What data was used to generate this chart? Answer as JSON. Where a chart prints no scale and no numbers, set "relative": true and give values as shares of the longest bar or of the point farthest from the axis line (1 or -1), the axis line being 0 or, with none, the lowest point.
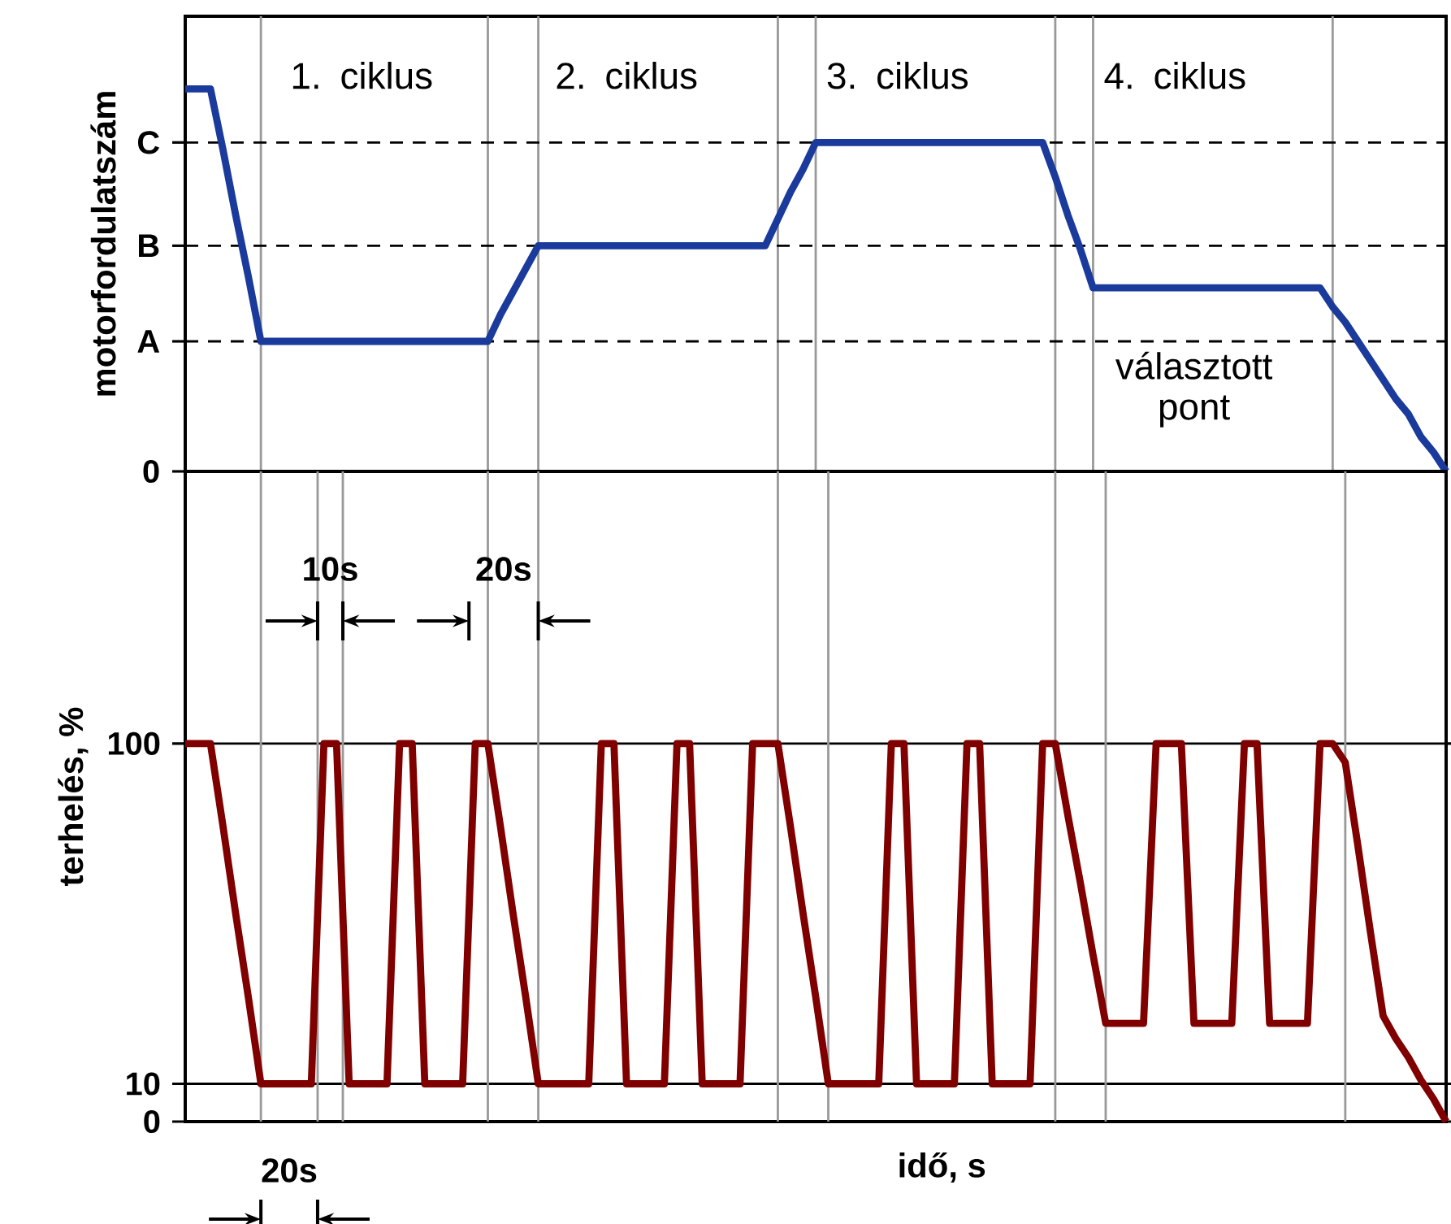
{
  "chart_data": [
    {
      "type": "line",
      "ylabel": "motorfordulatszám",
      "marker": "none",
      "relative": true,
      "grid": "x",
      "categories": [
        null,
        null,
        null,
        null,
        null,
        null,
        null,
        null,
        null,
        null,
        null,
        null,
        null,
        null,
        null,
        null,
        null,
        null,
        null,
        null,
        null,
        null,
        null,
        null,
        null,
        null,
        null,
        null,
        null,
        null,
        null,
        null,
        null,
        null,
        null,
        null,
        null,
        null,
        null,
        null,
        null,
        null,
        null,
        null,
        null,
        null,
        null,
        null,
        null,
        null,
        null,
        null,
        null,
        null,
        null,
        null,
        null,
        null,
        null,
        null,
        null,
        null,
        null,
        null,
        null,
        null,
        null,
        null,
        null,
        null,
        null,
        null,
        null,
        null,
        null,
        null,
        null,
        null,
        null,
        null,
        null,
        null,
        null,
        null,
        null,
        null,
        null,
        null,
        null,
        null,
        null,
        null,
        null,
        null,
        null,
        null,
        null,
        null,
        null,
        null,
        null
      ],
      "series": [
        {
          "color": "#1a3a9c",
          "values": [
            1,
            1,
            1,
            0.84,
            0.67,
            0.51,
            0.34,
            0.34,
            0.34,
            0.34,
            0.34,
            0.34,
            0.34,
            0.34,
            0.34,
            0.34,
            0.34,
            0.34,
            0.34,
            0.34,
            0.34,
            0.34,
            0.34,
            0.34,
            0.34,
            0.41,
            0.47,
            0.53,
            0.59,
            0.59,
            0.59,
            0.59,
            0.59,
            0.59,
            0.59,
            0.59,
            0.59,
            0.59,
            0.59,
            0.59,
            0.59,
            0.59,
            0.59,
            0.59,
            0.59,
            0.59,
            0.59,
            0.66,
            0.73,
            0.79,
            0.86,
            0.86,
            0.86,
            0.86,
            0.86,
            0.86,
            0.86,
            0.86,
            0.86,
            0.86,
            0.86,
            0.86,
            0.86,
            0.86,
            0.86,
            0.86,
            0.86,
            0.86,
            0.86,
            0.77,
            0.67,
            0.58,
            0.48,
            0.48,
            0.48,
            0.48,
            0.48,
            0.48,
            0.48,
            0.48,
            0.48,
            0.48,
            0.48,
            0.48,
            0.48,
            0.48,
            0.48,
            0.48,
            0.48,
            0.48,
            0.48,
            0.43,
            0.39,
            0.34,
            0.29,
            0.24,
            0.19,
            0.15,
            0.09,
            0.05,
            0
          ]
        }
      ],
      "ref_lines": [
        {
          "axis": "y",
          "value": 0,
          "label": "0",
          "color": "#000000"
        },
        {
          "axis": "y",
          "value": 0.34,
          "label": "A",
          "color": "#000000",
          "line_style": "dashed"
        },
        {
          "axis": "y",
          "value": 0.59,
          "label": "B",
          "color": "#000000",
          "line_style": "dashed"
        },
        {
          "axis": "y",
          "value": 0.86,
          "label": "C",
          "color": "#000000",
          "line_style": "dashed"
        }
      ],
      "annotations": [
        "1. ciklus",
        "2. ciklus",
        "3. ciklus",
        "4. ciklus",
        "választott pont"
      ]
    },
    {
      "type": "line",
      "ylabel": "terhelés, %",
      "xlabel": "idő, s",
      "marker": "none",
      "grid": true,
      "categories": [
        null,
        null,
        null,
        null,
        null,
        null,
        null,
        null,
        null,
        null,
        null,
        null,
        null,
        null,
        null,
        null,
        null,
        null,
        null,
        null,
        null,
        null,
        null,
        null,
        null,
        null,
        null,
        null,
        null,
        null,
        null,
        null,
        null,
        null,
        null,
        null,
        null,
        null,
        null,
        null,
        null,
        null,
        null,
        null,
        null,
        null,
        null,
        null,
        null,
        null,
        null,
        null,
        null,
        null,
        null,
        null,
        null,
        null,
        null,
        null,
        null,
        null,
        null,
        null,
        null,
        null,
        null,
        null,
        null,
        null,
        null,
        null,
        null,
        null,
        null,
        null,
        null,
        null,
        null,
        null,
        null,
        null,
        null,
        null,
        null,
        null,
        null,
        null,
        null,
        null,
        null,
        null,
        null,
        null,
        null,
        null,
        null,
        null,
        null,
        null,
        null
      ],
      "series": [
        {
          "color": "#800000",
          "values": [
            100,
            100,
            100,
            78,
            55,
            33,
            10,
            10,
            10,
            10,
            10,
            100,
            100,
            10,
            10,
            10,
            10,
            100,
            100,
            10,
            10,
            10,
            10,
            100,
            100,
            78,
            55,
            33,
            10,
            10,
            10,
            10,
            10,
            100,
            100,
            10,
            10,
            10,
            10,
            100,
            100,
            10,
            10,
            10,
            10,
            100,
            100,
            100,
            78,
            55,
            33,
            10,
            10,
            10,
            10,
            10,
            100,
            100,
            10,
            10,
            10,
            10,
            100,
            100,
            10,
            10,
            10,
            10,
            100,
            100,
            81,
            63,
            44,
            26,
            26,
            26,
            26,
            100,
            100,
            100,
            26,
            26,
            26,
            26,
            100,
            100,
            26,
            26,
            26,
            26,
            100,
            100,
            95,
            73,
            50,
            28,
            22,
            17,
            11,
            6,
            0
          ]
        }
      ],
      "ylim": [
        0,
        172
      ],
      "yticks": [
        0,
        10,
        100
      ],
      "annotations": [
        "10s",
        "20s",
        "20s"
      ]
    }
  ]
}
